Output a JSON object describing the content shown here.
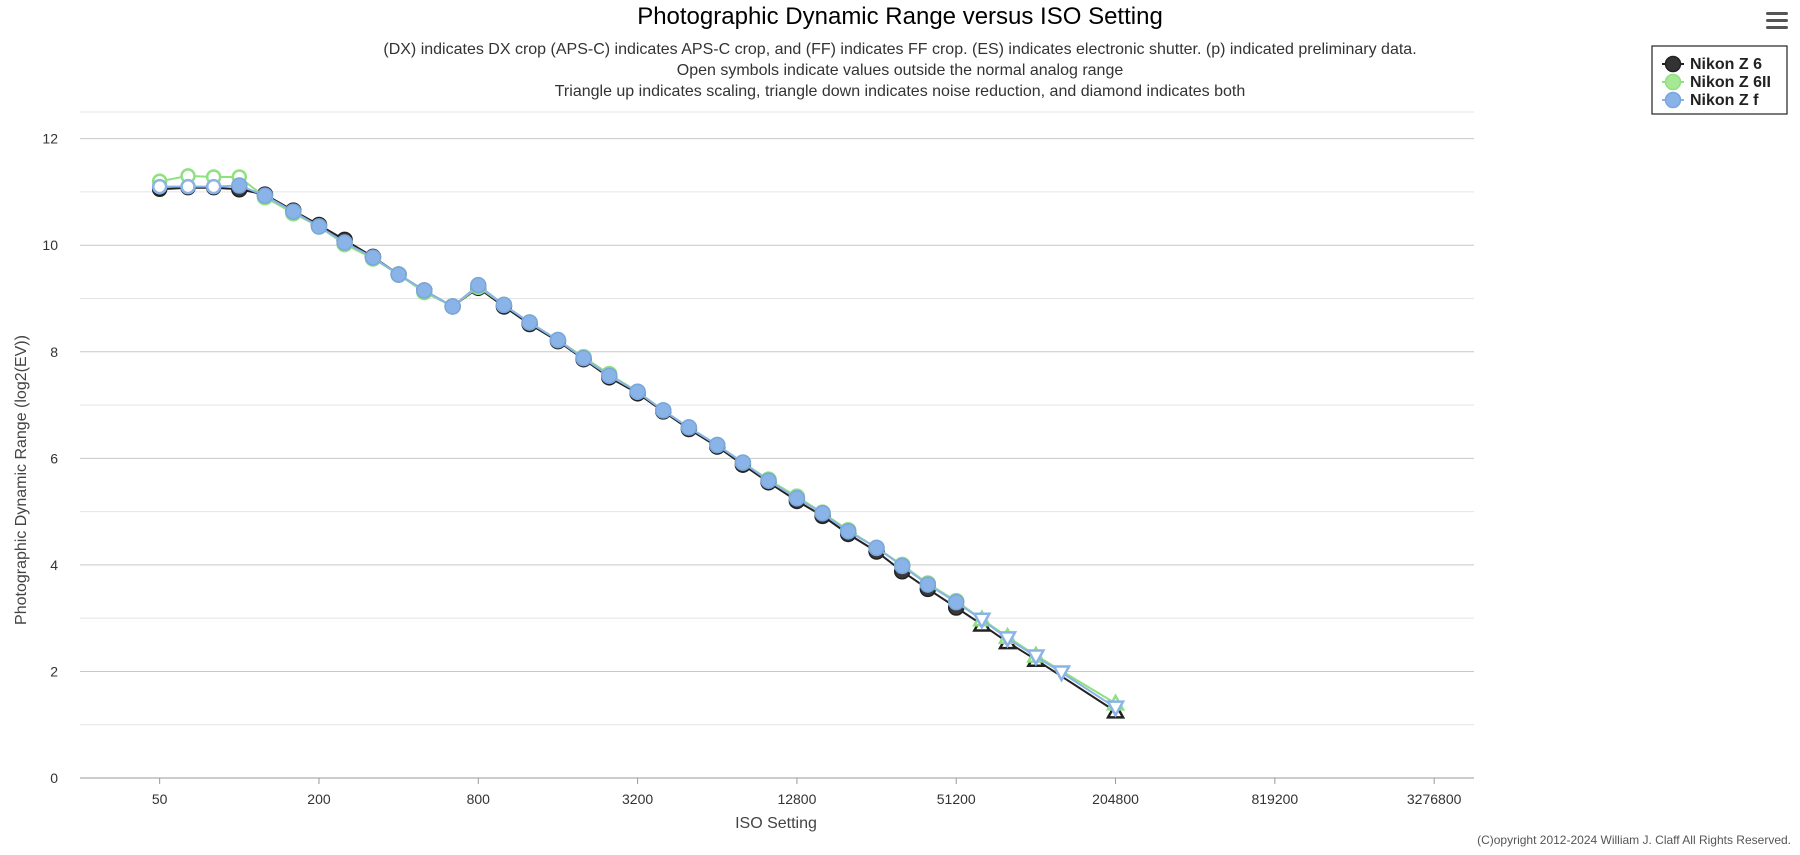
{
  "menu": {
    "icon": "hamburger-menu-icon"
  },
  "credits": "(C)opyright 2012-2024 William J. Claff All Rights Reserved.",
  "chart_data": {
    "type": "line",
    "title": "Photographic Dynamic Range versus ISO Setting",
    "subtitle": [
      "(DX) indicates DX crop (APS-C) indicates APS-C crop, and (FF) indicates FF crop. (ES) indicates electronic shutter. (p) indicated preliminary data.",
      "Open symbols indicate values outside the normal analog range",
      "Triangle up indicates scaling, triangle down indicates noise reduction, and diamond indicates both"
    ],
    "xlabel": "ISO Setting",
    "ylabel": "Photographic Dynamic Range (log2(EV))",
    "x_scale": "log2",
    "x_ticks": [
      50,
      200,
      800,
      3200,
      12800,
      51200,
      204800,
      819200,
      3276800
    ],
    "xlim": [
      25,
      4634496
    ],
    "ylim": [
      0,
      12.5
    ],
    "y_ticks": [
      0,
      2,
      4,
      6,
      8,
      10,
      12
    ],
    "grid": true,
    "legend_position": "top-right",
    "series": [
      {
        "name": "Nikon Z 6",
        "color": "#222222",
        "x": [
          50,
          64,
          80,
          100,
          125,
          160,
          200,
          250,
          320,
          400,
          500,
          640,
          800,
          1000,
          1250,
          1600,
          2000,
          2500,
          3200,
          4000,
          5000,
          6400,
          8000,
          10000,
          12800,
          16000,
          20000,
          25600,
          32000,
          40000,
          51200,
          64000,
          80000,
          102400,
          204800
        ],
        "y": [
          11.05,
          11.08,
          11.08,
          11.05,
          10.95,
          10.65,
          10.38,
          10.1,
          9.78,
          9.45,
          9.15,
          8.85,
          9.2,
          8.85,
          8.52,
          8.2,
          7.86,
          7.52,
          7.22,
          6.88,
          6.55,
          6.22,
          5.88,
          5.55,
          5.2,
          4.92,
          4.58,
          4.25,
          3.88,
          3.55,
          3.2,
          2.88,
          2.55,
          2.22,
          1.25
        ],
        "marker": [
          "open-circle",
          "open-circle",
          "open-circle",
          "circle",
          "circle",
          "circle",
          "circle",
          "circle",
          "circle",
          "circle",
          "circle",
          "circle",
          "circle",
          "circle",
          "circle",
          "circle",
          "circle",
          "circle",
          "circle",
          "circle",
          "circle",
          "circle",
          "circle",
          "circle",
          "circle",
          "circle",
          "circle",
          "circle",
          "circle",
          "circle",
          "circle",
          "open-triangle-up",
          "open-triangle-up",
          "open-triangle-up",
          "open-triangle-up"
        ]
      },
      {
        "name": "Nikon Z 6II",
        "color": "#90e080",
        "x": [
          50,
          64,
          80,
          100,
          125,
          160,
          200,
          250,
          320,
          400,
          500,
          640,
          800,
          1000,
          1250,
          1600,
          2000,
          2500,
          3200,
          4000,
          5000,
          6400,
          8000,
          10000,
          12800,
          16000,
          20000,
          25600,
          32000,
          40000,
          51200,
          64000,
          80000,
          102400,
          204800
        ],
        "y": [
          11.2,
          11.3,
          11.28,
          11.28,
          10.9,
          10.6,
          10.35,
          10.02,
          9.75,
          9.45,
          9.12,
          8.85,
          9.22,
          8.88,
          8.55,
          8.22,
          7.9,
          7.58,
          7.25,
          6.9,
          6.58,
          6.25,
          5.92,
          5.6,
          5.28,
          4.98,
          4.65,
          4.32,
          4.0,
          3.65,
          3.32,
          2.98,
          2.65,
          2.3,
          1.4
        ],
        "marker": [
          "open-circle",
          "open-circle",
          "open-circle",
          "open-circle",
          "circle",
          "circle",
          "circle",
          "circle",
          "circle",
          "circle",
          "circle",
          "circle",
          "circle",
          "circle",
          "circle",
          "circle",
          "circle",
          "circle",
          "circle",
          "circle",
          "circle",
          "circle",
          "circle",
          "circle",
          "circle",
          "circle",
          "circle",
          "circle",
          "circle",
          "circle",
          "circle",
          "open-triangle-up",
          "open-triangle-up",
          "open-triangle-up",
          "open-triangle-up"
        ]
      },
      {
        "name": "Nikon Z f",
        "color": "#8ab4e8",
        "x": [
          50,
          64,
          80,
          100,
          125,
          160,
          200,
          250,
          320,
          400,
          500,
          640,
          800,
          1000,
          1250,
          1600,
          2000,
          2500,
          3200,
          4000,
          5000,
          6400,
          8000,
          10000,
          12800,
          16000,
          20000,
          25600,
          32000,
          40000,
          51200,
          64000,
          80000,
          102400,
          128000,
          204800
        ],
        "y": [
          11.1,
          11.1,
          11.1,
          11.12,
          10.93,
          10.63,
          10.35,
          10.05,
          9.77,
          9.45,
          9.15,
          8.85,
          9.25,
          8.88,
          8.55,
          8.22,
          7.88,
          7.55,
          7.25,
          6.9,
          6.58,
          6.25,
          5.92,
          5.58,
          5.25,
          4.97,
          4.63,
          4.32,
          3.98,
          3.63,
          3.3,
          2.97,
          2.62,
          2.28,
          1.98,
          1.32
        ],
        "marker": [
          "open-circle",
          "open-circle",
          "open-circle",
          "circle",
          "circle",
          "circle",
          "circle",
          "circle",
          "circle",
          "circle",
          "circle",
          "circle",
          "circle",
          "circle",
          "circle",
          "circle",
          "circle",
          "circle",
          "circle",
          "circle",
          "circle",
          "circle",
          "circle",
          "circle",
          "circle",
          "circle",
          "circle",
          "circle",
          "circle",
          "circle",
          "circle",
          "open-triangle-down",
          "open-triangle-down",
          "open-triangle-down",
          "open-triangle-down",
          "open-triangle-down"
        ]
      }
    ]
  }
}
